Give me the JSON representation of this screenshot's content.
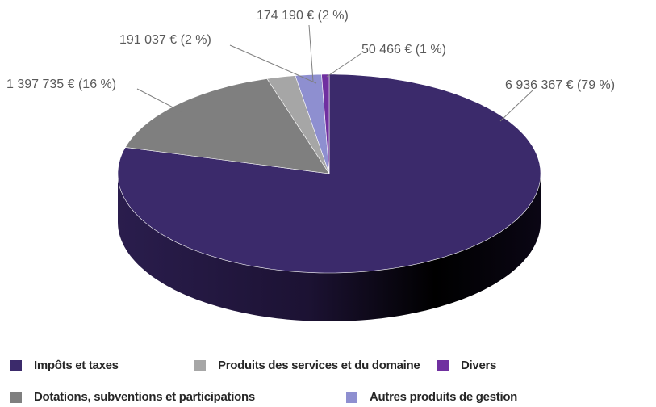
{
  "chart_data": {
    "type": "pie",
    "categories": [
      "Impôts et taxes",
      "Dotations, subventions et participations",
      "Produits des services et du domaine",
      "Autres produits de gestion",
      "Divers"
    ],
    "values": [
      6936367,
      1397735,
      191037,
      174190,
      50466
    ],
    "value_labels": [
      "6 936 367 € (79 %)",
      "1 397 735 € (16 %)",
      "191 037 € (2 %)",
      "174 190 € (2 %)",
      "50 466 € (1 %)"
    ],
    "colors": [
      "#3b2a6b",
      "#7f7f7f",
      "#a6a6a6",
      "#8e8fd0",
      "#7030a0"
    ]
  }
}
